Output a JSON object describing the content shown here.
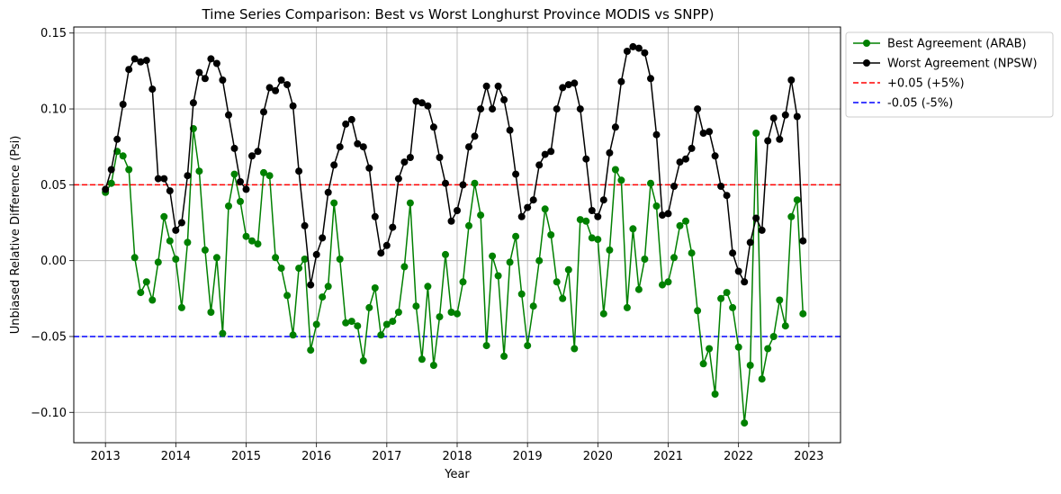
{
  "chart_data": {
    "type": "line",
    "title": "Time Series Comparison: Best vs Worst Longhurst Province MODIS vs SNPP)",
    "xlabel": "Year",
    "ylabel": "Unbiased Relative Difference (Psi)",
    "xlim": [
      2012.55,
      2023.45
    ],
    "ylim": [
      -0.12,
      0.154
    ],
    "x_ticks": [
      2013,
      2014,
      2015,
      2016,
      2017,
      2018,
      2019,
      2020,
      2021,
      2022,
      2023
    ],
    "x_tick_labels": [
      "2013",
      "2014",
      "2015",
      "2016",
      "2017",
      "2018",
      "2019",
      "2020",
      "2021",
      "2022",
      "2023"
    ],
    "y_ticks": [
      -0.1,
      -0.05,
      0.0,
      0.05,
      0.1,
      0.15
    ],
    "y_tick_labels": [
      "−0.10",
      "−0.05",
      "0.00",
      "0.05",
      "0.10",
      "0.15"
    ],
    "grid": true,
    "legend_placement": "outside-top-right",
    "reference_lines": [
      {
        "name": "+0.05 (+5%)",
        "y": 0.05,
        "color": "#ff0000",
        "style": "dashed"
      },
      {
        "name": "-0.05 (-5%)",
        "y": -0.05,
        "color": "#0000ff",
        "style": "dashed"
      }
    ],
    "series": [
      {
        "name": "Best Agreement (ARAB)",
        "color": "#008000",
        "start": "2013-01",
        "values": [
          0.045,
          0.051,
          0.072,
          0.069,
          0.06,
          0.002,
          -0.021,
          -0.014,
          -0.026,
          -0.001,
          0.029,
          0.013,
          0.001,
          -0.031,
          0.012,
          0.087,
          0.059,
          0.007,
          -0.034,
          0.002,
          -0.048,
          0.036,
          0.057,
          0.039,
          0.016,
          0.013,
          0.011,
          0.058,
          0.056,
          0.002,
          -0.005,
          -0.023,
          -0.049,
          -0.005,
          0.001,
          -0.059,
          -0.042,
          -0.024,
          -0.017,
          0.038,
          0.001,
          -0.041,
          -0.04,
          -0.043,
          -0.066,
          -0.031,
          -0.018,
          -0.049,
          -0.042,
          -0.04,
          -0.034,
          -0.004,
          0.038,
          -0.03,
          -0.065,
          -0.017,
          -0.069,
          -0.037,
          0.004,
          -0.034,
          -0.035,
          -0.014,
          0.023,
          0.051,
          0.03,
          -0.056,
          0.003,
          -0.01,
          -0.063,
          -0.001,
          0.016,
          -0.022,
          -0.056,
          -0.03,
          0.0,
          0.034,
          0.017,
          -0.014,
          -0.025,
          -0.006,
          -0.058,
          0.027,
          0.026,
          0.015,
          0.014,
          -0.035,
          0.007,
          0.06,
          0.053,
          -0.031,
          0.021,
          -0.019,
          0.001,
          0.051,
          0.036,
          -0.016,
          -0.014,
          0.002,
          0.023,
          0.026,
          0.005,
          -0.033,
          -0.068,
          -0.058,
          -0.088,
          -0.025,
          -0.021,
          -0.031,
          -0.057,
          -0.107,
          -0.069,
          0.084,
          -0.078,
          -0.058,
          -0.05,
          -0.026,
          -0.043,
          0.029,
          0.04,
          -0.035
        ]
      },
      {
        "name": "Worst Agreement (NPSW)",
        "color": "#000000",
        "start": "2013-01",
        "values": [
          0.047,
          0.06,
          0.08,
          0.103,
          0.126,
          0.133,
          0.131,
          0.132,
          0.113,
          0.054,
          0.054,
          0.046,
          0.02,
          0.025,
          0.056,
          0.104,
          0.124,
          0.12,
          0.133,
          0.13,
          0.119,
          0.096,
          0.074,
          0.052,
          0.047,
          0.069,
          0.072,
          0.098,
          0.114,
          0.112,
          0.119,
          0.116,
          0.102,
          0.059,
          0.023,
          -0.016,
          0.004,
          0.015,
          0.045,
          0.063,
          0.075,
          0.09,
          0.093,
          0.077,
          0.075,
          0.061,
          0.029,
          0.005,
          0.01,
          0.022,
          0.054,
          0.065,
          0.068,
          0.105,
          0.104,
          0.102,
          0.088,
          0.068,
          0.051,
          0.026,
          0.033,
          0.05,
          0.075,
          0.082,
          0.1,
          0.115,
          0.1,
          0.115,
          0.106,
          0.086,
          0.057,
          0.029,
          0.035,
          0.04,
          0.063,
          0.07,
          0.072,
          0.1,
          0.114,
          0.116,
          0.117,
          0.1,
          0.067,
          0.033,
          0.029,
          0.04,
          0.071,
          0.088,
          0.118,
          0.138,
          0.141,
          0.14,
          0.137,
          0.12,
          0.083,
          0.03,
          0.031,
          0.049,
          0.065,
          0.067,
          0.074,
          0.1,
          0.084,
          0.085,
          0.069,
          0.049,
          0.043,
          0.005,
          -0.007,
          -0.014,
          0.012,
          0.028,
          0.02,
          0.079,
          0.094,
          0.08,
          0.096,
          0.119,
          0.095,
          0.013
        ]
      }
    ]
  }
}
